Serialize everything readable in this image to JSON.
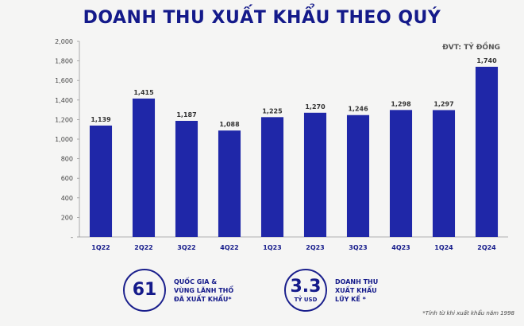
{
  "title": "DOANH THU XUẤT KHẨU THEO QUÝ",
  "unit_label": "ĐVT: TỶ ĐỒNG",
  "colors": {
    "bar": "#1f27a8",
    "axis": "#999999",
    "accent": "#141a8a"
  },
  "chart_data": {
    "type": "bar",
    "categories": [
      "1Q22",
      "2Q22",
      "3Q22",
      "4Q22",
      "1Q23",
      "2Q23",
      "3Q23",
      "4Q23",
      "1Q24",
      "2Q24"
    ],
    "values": [
      1139,
      1415,
      1187,
      1088,
      1225,
      1270,
      1246,
      1298,
      1297,
      1740
    ],
    "value_labels": [
      "1,139",
      "1,415",
      "1,187",
      "1,088",
      "1,225",
      "1,270",
      "1,246",
      "1,298",
      "1,297",
      "1,740"
    ],
    "ylim": [
      0,
      2000
    ],
    "yticks": [
      0,
      200,
      400,
      600,
      800,
      1000,
      1200,
      1400,
      1600,
      1800,
      2000
    ],
    "ytick_labels": [
      "-",
      "200",
      "400",
      "600",
      "800",
      "1,000",
      "1,200",
      "1,400",
      "1,600",
      "1,800",
      "2,000"
    ],
    "grid": false
  },
  "stats": [
    {
      "value": "61",
      "sub": "",
      "text": "QUỐC GIA &\nVÙNG LÃNH THỔ\nĐÃ XUẤT KHẨU*"
    },
    {
      "value": "3.3",
      "sub": "TỶ USD",
      "text": "DOANH THU\nXUẤT KHẨU\nLŨY KẾ *"
    }
  ],
  "footnote": "*Tính từ khi xuất khẩu năm 1998"
}
